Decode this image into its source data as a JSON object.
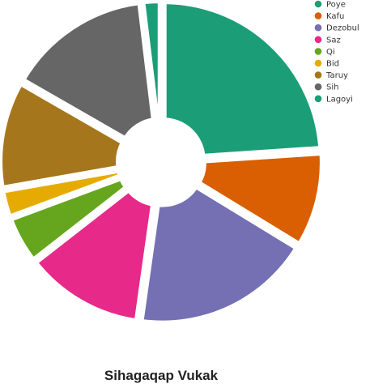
{
  "chart_data": {
    "type": "pie",
    "title": "Sihagaqap Vukak",
    "style": "donut-exploded",
    "legend_position": "top-right",
    "slices": [
      {
        "label": "Poye",
        "value": 22.5,
        "color": "#1b9e77"
      },
      {
        "label": "Kafu",
        "value": 9.2,
        "color": "#d95f02"
      },
      {
        "label": "Dezobul",
        "value": 17.4,
        "color": "#7570b3"
      },
      {
        "label": "Saz",
        "value": 11.5,
        "color": "#e7298a"
      },
      {
        "label": "Qi",
        "value": 4.6,
        "color": "#66a61e"
      },
      {
        "label": "Bid",
        "value": 2.7,
        "color": "#e6ab02"
      },
      {
        "label": "Taruy",
        "value": 10.4,
        "color": "#a6761d"
      },
      {
        "label": "Sih",
        "value": 13.9,
        "color": "#666666"
      },
      {
        "label": "Lagoyi",
        "value": 1.8,
        "color": "#1b9e77"
      }
    ]
  }
}
